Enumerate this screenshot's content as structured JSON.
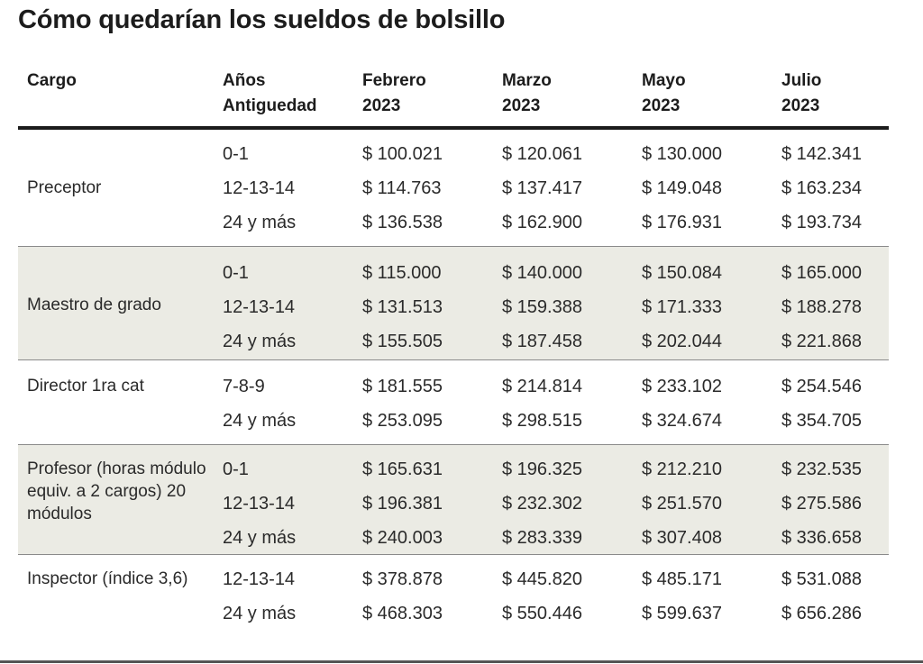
{
  "title": "Cómo quedarían los sueldos de bolsillo",
  "columns": {
    "cargo": "Cargo",
    "anios_1": "Años",
    "anios_2": "Antiguedad",
    "months": [
      {
        "name": "Febrero",
        "year": "2023"
      },
      {
        "name": "Marzo",
        "year": "2023"
      },
      {
        "name": "Mayo",
        "year": "2023"
      },
      {
        "name": "Julio",
        "year": "2023"
      }
    ]
  },
  "chart_data": {
    "type": "table",
    "title": "Cómo quedarían los sueldos de bolsillo",
    "headers": [
      "Cargo",
      "Años Antiguedad",
      "Febrero 2023",
      "Marzo 2023",
      "Mayo 2023",
      "Julio 2023"
    ],
    "groups": [
      {
        "cargo": "Preceptor",
        "shaded": false,
        "rows": [
          {
            "antiguedad": "0-1",
            "values": [
              "$ 100.021",
              "$ 120.061",
              "$ 130.000",
              "$ 142.341"
            ]
          },
          {
            "antiguedad": "12-13-14",
            "values": [
              "$ 114.763",
              "$ 137.417",
              "$ 149.048",
              "$ 163.234"
            ]
          },
          {
            "antiguedad": "24 y más",
            "values": [
              "$ 136.538",
              "$ 162.900",
              "$ 176.931",
              "$ 193.734"
            ]
          }
        ]
      },
      {
        "cargo": "Maestro de grado",
        "shaded": true,
        "rows": [
          {
            "antiguedad": "0-1",
            "values": [
              "$ 115.000",
              "$ 140.000",
              "$ 150.084",
              "$ 165.000"
            ]
          },
          {
            "antiguedad": "12-13-14",
            "values": [
              "$ 131.513",
              "$ 159.388",
              "$ 171.333",
              "$ 188.278"
            ]
          },
          {
            "antiguedad": "24 y más",
            "values": [
              "$ 155.505",
              "$ 187.458",
              "$ 202.044",
              "$ 221.868"
            ]
          }
        ]
      },
      {
        "cargo": "Director 1ra cat",
        "shaded": false,
        "rows": [
          {
            "antiguedad": "7-8-9",
            "values": [
              "$ 181.555",
              "$ 214.814",
              "$ 233.102",
              "$ 254.546"
            ]
          },
          {
            "antiguedad": "24 y más",
            "values": [
              "$ 253.095",
              "$ 298.515",
              "$ 324.674",
              "$ 354.705"
            ]
          }
        ]
      },
      {
        "cargo": "Profesor (horas módulo equiv. a 2 cargos) 20 módulos",
        "shaded": true,
        "rows": [
          {
            "antiguedad": "0-1",
            "values": [
              "$ 165.631",
              "$ 196.325",
              "$ 212.210",
              "$ 232.535"
            ]
          },
          {
            "antiguedad": "12-13-14",
            "values": [
              "$ 196.381",
              "$ 232.302",
              "$ 251.570",
              "$ 275.586"
            ]
          },
          {
            "antiguedad": "24 y más",
            "values": [
              "$ 240.003",
              "$ 283.339",
              "$ 307.408",
              "$ 336.658"
            ]
          }
        ]
      },
      {
        "cargo": "Inspector (índice 3,6)",
        "shaded": false,
        "rows": [
          {
            "antiguedad": "12-13-14",
            "values": [
              "$ 378.878",
              "$ 445.820",
              "$ 485.171",
              "$ 531.088"
            ]
          },
          {
            "antiguedad": "24 y más",
            "values": [
              "$ 468.303",
              "$ 550.446",
              "$ 599.637",
              "$ 656.286"
            ]
          }
        ]
      }
    ]
  },
  "colors": {
    "text": "#222222",
    "shade": "#ebebe4",
    "rule": "#1c1c1c",
    "separator": "#8a8a8a"
  }
}
